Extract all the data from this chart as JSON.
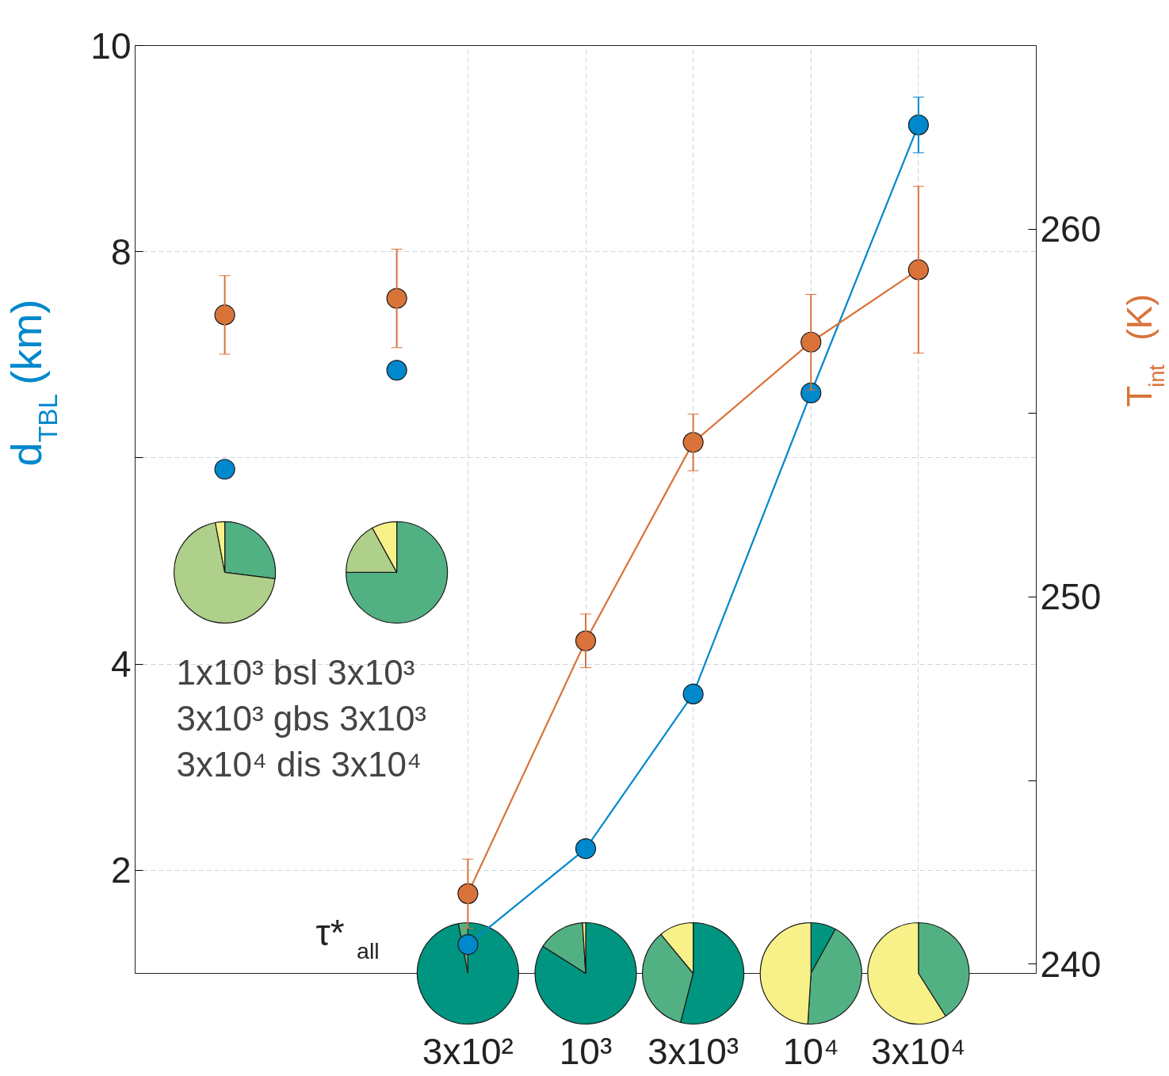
{
  "chart_data": [
    {
      "type": "line",
      "xlabel": "τ*$_{all}$",
      "ylabel": "d$_{TBL}$ (km)",
      "y2label": "T$_{int}$ (K)",
      "log": "x",
      "xlim": [
        10,
        100000
      ],
      "ylim": [
        1,
        10
      ],
      "y2lim": [
        239.75,
        265
      ],
      "xticks": [
        {
          "value": 300,
          "label": "3x10²"
        },
        {
          "value": 1000,
          "label": "10³"
        },
        {
          "value": 3000,
          "label": "3x10³"
        },
        {
          "value": 10000,
          "label": "10⁴"
        },
        {
          "value": 30000,
          "label": "3x10⁴"
        }
      ],
      "yticks": [
        2,
        4,
        {
          "value": 6,
          "label": null
        },
        8,
        10
      ],
      "y2ticks": [
        240,
        {
          "value": 245,
          "label": null
        },
        250,
        {
          "value": 255,
          "label": null
        },
        260
      ],
      "grid": true,
      "marker": "circle",
      "line_style": "solid",
      "series": [
        {
          "type": "line",
          "color": "#0088cc",
          "x": [
            300,
            1000,
            3000,
            10000,
            30000
          ],
          "values": [
            1.28,
            2.21,
            3.71,
            6.63,
            9.23
          ],
          "errors": [
            null,
            null,
            null,
            null,
            0.27
          ]
        },
        {
          "type": "line",
          "color": "#d9733a",
          "axis": "y2",
          "x": [
            300,
            1000,
            3000,
            10000,
            30000
          ],
          "values": [
            241.92,
            248.8,
            254.2,
            256.93,
            258.9
          ],
          "errors": [
            0.94,
            0.73,
            0.77,
            1.3,
            2.27
          ]
        },
        {
          "type": "scatter",
          "color": "#0088cc",
          "x": [
            25,
            145
          ],
          "values": [
            5.89,
            6.85
          ]
        },
        {
          "type": "scatter",
          "color": "#d9733a",
          "axis": "y2",
          "x": [
            25,
            145
          ],
          "values": [
            257.67,
            258.12
          ],
          "errors": [
            1.07,
            1.34
          ]
        }
      ],
      "annotations": [
        "1x10³  bsl  3x10³",
        "3x10³  gbs  3x10³",
        "3x10⁴  dis  3x10⁴"
      ]
    },
    {
      "type": "pie",
      "categories": [
        null,
        null,
        null
      ],
      "values": [
        27,
        70,
        3
      ],
      "colors": [
        "#52b183",
        "#afd08a",
        "#f8f189"
      ]
    },
    {
      "type": "pie",
      "categories": [
        null,
        null,
        null
      ],
      "values": [
        75,
        17,
        8
      ],
      "colors": [
        "#52b183",
        "#afd08a",
        "#f8f189"
      ]
    },
    {
      "type": "pie",
      "categories": [
        null,
        null
      ],
      "values": [
        97,
        3
      ],
      "colors": [
        "#009580",
        "#52b183"
      ]
    },
    {
      "type": "pie",
      "categories": [
        null,
        null,
        null
      ],
      "values": [
        84,
        15,
        1
      ],
      "colors": [
        "#009580",
        "#52b183",
        "#f8f189"
      ]
    },
    {
      "type": "pie",
      "categories": [
        null,
        null,
        null
      ],
      "values": [
        54,
        35,
        11
      ],
      "colors": [
        "#009580",
        "#52b183",
        "#f8f189"
      ]
    },
    {
      "type": "pie",
      "categories": [
        null,
        null,
        null
      ],
      "values": [
        8,
        43,
        49
      ],
      "colors": [
        "#009580",
        "#52b183",
        "#f8f189"
      ]
    },
    {
      "type": "pie",
      "categories": [
        null,
        null
      ],
      "values": [
        41,
        59
      ],
      "colors": [
        "#52b183",
        "#f8f189"
      ]
    }
  ]
}
